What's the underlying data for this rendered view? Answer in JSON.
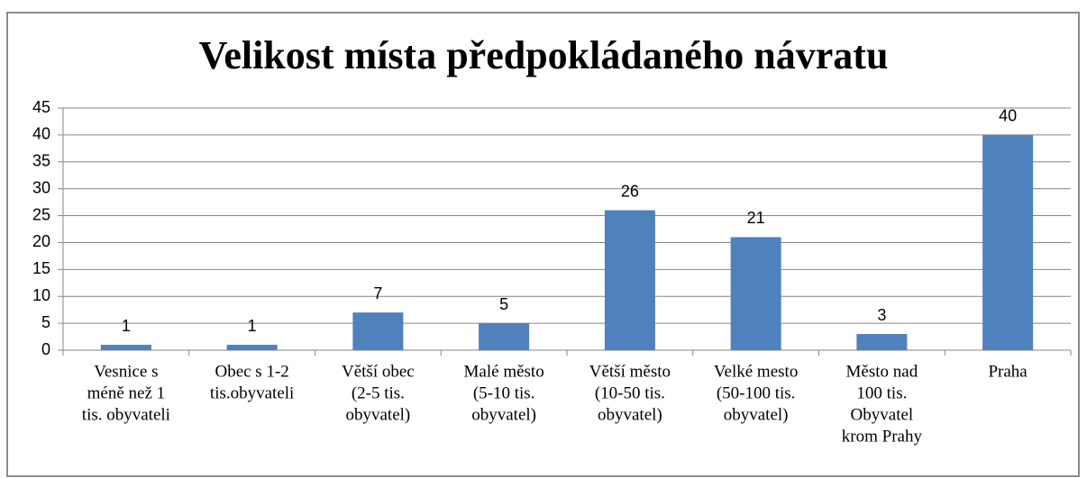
{
  "chart_data": {
    "type": "bar",
    "title": "Velikost místa předpokládaného návratu",
    "categories": [
      [
        "Vesnice s",
        "méně než 1",
        "tis. obyvateli"
      ],
      [
        "Obec s 1-2",
        "tis.obyvateli"
      ],
      [
        "Větší obec",
        "(2-5 tis.",
        "obyvatel)"
      ],
      [
        "Malé město",
        "(5-10 tis.",
        "obyvatel)"
      ],
      [
        "Větší město",
        "(10-50 tis.",
        "obyvatel)"
      ],
      [
        "Velké mesto",
        "(50-100 tis.",
        "obyvatel)"
      ],
      [
        "Město nad",
        "100 tis.",
        "Obyvatel",
        "krom Prahy"
      ],
      [
        "Praha"
      ]
    ],
    "values": [
      1,
      1,
      7,
      5,
      26,
      21,
      3,
      40
    ],
    "color": "#4f81bd",
    "ylim": [
      0,
      45
    ],
    "yticks": [
      0,
      5,
      10,
      15,
      20,
      25,
      30,
      35,
      40,
      45
    ],
    "grid": true
  }
}
